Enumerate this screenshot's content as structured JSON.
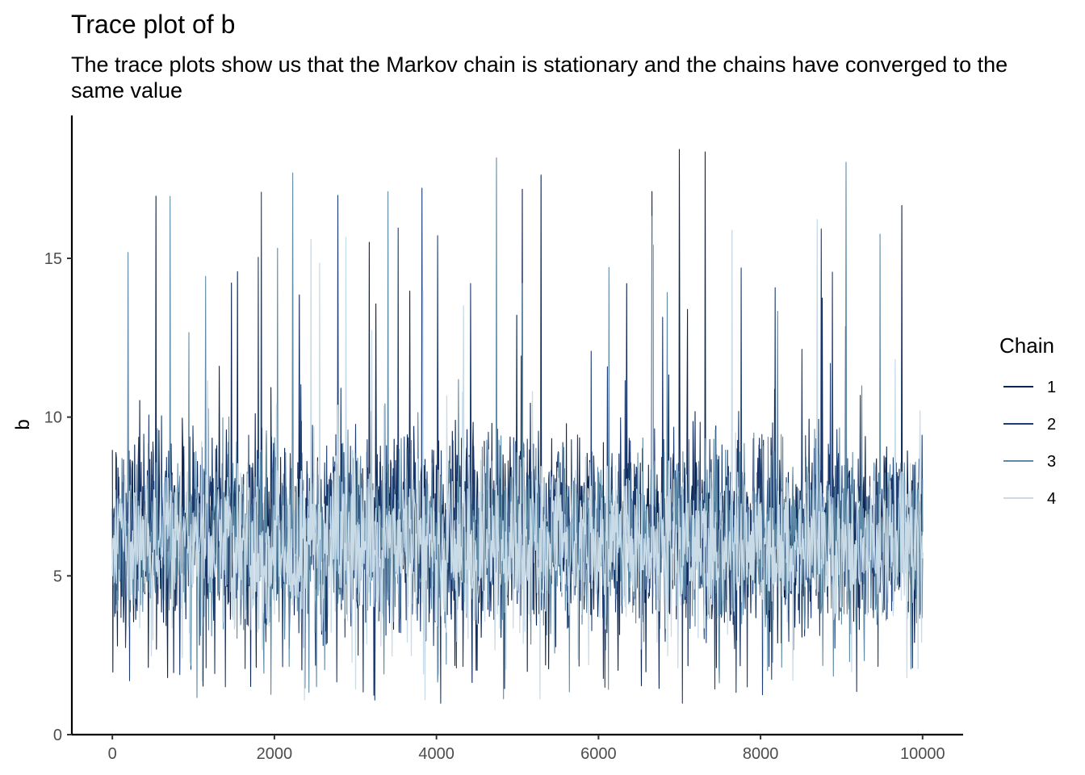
{
  "title": "Trace plot of b",
  "subtitle": "The trace plots show us that the Markov chain is stationary and the chains have converged to the same value",
  "chart_data": {
    "type": "line",
    "title": "Trace plot of b",
    "subtitle": "The trace plots show us that the Markov chain is stationary and the chains have converged to the same value",
    "xlabel": "",
    "ylabel": "b",
    "xlim": [
      -500,
      10500
    ],
    "ylim": [
      0,
      19.5
    ],
    "x_ticks": [
      0,
      2000,
      4000,
      6000,
      8000,
      10000
    ],
    "x_tick_labels": [
      "0",
      "2000",
      "4000",
      "6000",
      "8000",
      "10000"
    ],
    "y_ticks": [
      0,
      5,
      10,
      15
    ],
    "y_tick_labels": [
      "0",
      "5",
      "10",
      "15"
    ],
    "grid": false,
    "legend": {
      "title": "Chain",
      "position": "right"
    },
    "series": [
      {
        "name": "1",
        "color": "#0b2553",
        "x_range": [
          0,
          10000
        ],
        "mean": 5.6,
        "typical_range": [
          2.2,
          10.5
        ],
        "max": 18.5,
        "min": 1.3
      },
      {
        "name": "2",
        "color": "#1d3d72",
        "x_range": [
          0,
          10000
        ],
        "mean": 5.6,
        "typical_range": [
          2.2,
          10.5
        ],
        "max": 17.7,
        "min": 0.8
      },
      {
        "name": "3",
        "color": "#5f8aa6",
        "x_range": [
          0,
          10000
        ],
        "mean": 5.6,
        "typical_range": [
          2.3,
          10.0
        ],
        "max": 18.5,
        "min": 1.0
      },
      {
        "name": "4",
        "color": "#c9dbe7",
        "x_range": [
          0,
          10000
        ],
        "mean": 5.6,
        "typical_range": [
          2.5,
          9.5
        ],
        "max": 16.8,
        "min": 0.9
      }
    ]
  }
}
